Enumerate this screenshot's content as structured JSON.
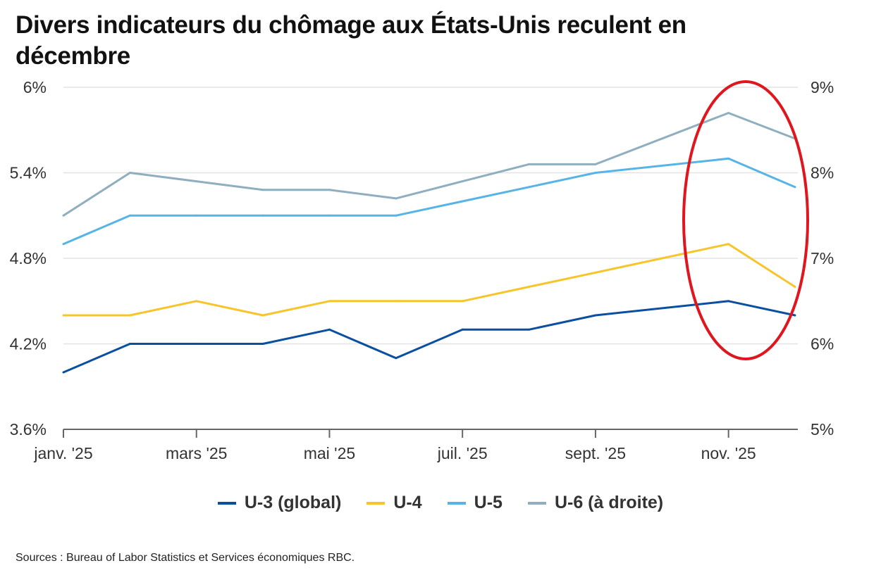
{
  "chart_data": {
    "type": "line",
    "title": "Divers indicateurs du chômage aux États-Unis reculent en décembre",
    "x": [
      "janv. '25",
      "févr. '25",
      "mars '25",
      "avr. '25",
      "mai '25",
      "juin '25",
      "juil. '25",
      "août '25",
      "sept. '25",
      "oct. '25",
      "nov. '25",
      "déc. '25"
    ],
    "x_tick_labels": [
      "janv. '25",
      "mars '25",
      "mai '25",
      "juil. '25",
      "sept. '25",
      "nov. '25"
    ],
    "y_left": {
      "range": [
        3.6,
        6.0
      ],
      "ticks": [
        "3.6%",
        "4.2%",
        "4.8%",
        "5.4%",
        "6%"
      ],
      "tick_values": [
        3.6,
        4.2,
        4.8,
        5.4,
        6.0
      ]
    },
    "y_right": {
      "range": [
        5,
        9
      ],
      "ticks": [
        "5%",
        "6%",
        "7%",
        "8%",
        "9%"
      ],
      "tick_values": [
        5,
        6,
        7,
        8,
        9
      ]
    },
    "grid": true,
    "legend_position": "bottom",
    "series": [
      {
        "name": "U-3 (global)",
        "axis": "left",
        "color": "#0a4fa0",
        "values": [
          4.0,
          4.2,
          4.2,
          4.2,
          4.3,
          4.1,
          4.3,
          4.3,
          4.4,
          null,
          4.5,
          4.4
        ]
      },
      {
        "name": "U-4",
        "axis": "left",
        "color": "#f7c52b",
        "values": [
          4.4,
          4.4,
          4.5,
          4.4,
          4.5,
          4.5,
          4.5,
          4.6,
          4.7,
          null,
          4.9,
          4.6
        ]
      },
      {
        "name": "U-5",
        "axis": "left",
        "color": "#56b4e6",
        "values": [
          4.9,
          5.1,
          5.1,
          5.1,
          5.1,
          5.1,
          5.2,
          5.3,
          5.4,
          null,
          5.5,
          5.3
        ]
      },
      {
        "name": "U-6 (à droite)",
        "axis": "right",
        "color": "#8faebf",
        "values": [
          7.5,
          8.0,
          7.9,
          7.8,
          7.8,
          7.7,
          7.9,
          8.1,
          8.1,
          null,
          8.7,
          8.4
        ]
      }
    ],
    "annotation_color": "#e0161e"
  },
  "source": "Sources : Bureau of Labor Statistics et Services économiques RBC."
}
